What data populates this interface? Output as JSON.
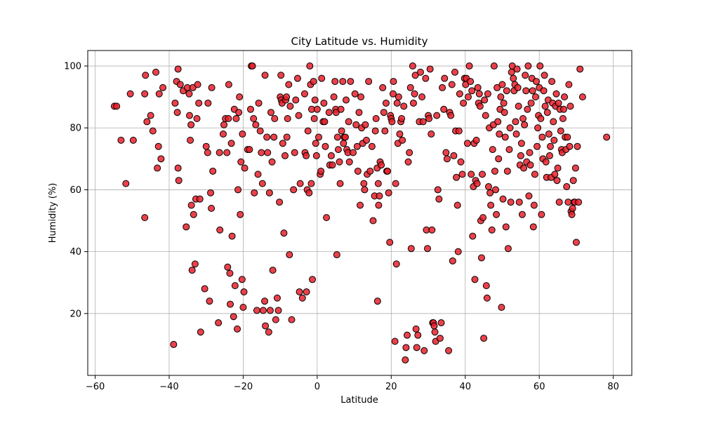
{
  "chart_data": {
    "type": "scatter",
    "title": "City Latitude vs. Humidity",
    "xlabel": "Latitude",
    "ylabel": "Humidity (%)",
    "xlim": [
      -62,
      85
    ],
    "ylim": [
      0,
      105
    ],
    "xticks": [
      -60,
      -40,
      -20,
      0,
      20,
      40,
      60,
      80
    ],
    "yticks": [
      20,
      40,
      60,
      80,
      100
    ],
    "grid": true,
    "marker_fill": "#e8202a",
    "marker_edge": "#000000",
    "points": [
      [
        -54.8,
        87
      ],
      [
        -54.2,
        87
      ],
      [
        -53,
        76
      ],
      [
        -51.7,
        62
      ],
      [
        -50.5,
        91
      ],
      [
        -49.7,
        76
      ],
      [
        -46.6,
        91
      ],
      [
        -46.6,
        51
      ],
      [
        -46.4,
        97
      ],
      [
        -46,
        82
      ],
      [
        -45,
        84
      ],
      [
        -44.4,
        79
      ],
      [
        -43.6,
        98
      ],
      [
        -43.2,
        67
      ],
      [
        -42.9,
        74
      ],
      [
        -42.7,
        91
      ],
      [
        -42.2,
        70
      ],
      [
        -41.7,
        93
      ],
      [
        -38.8,
        10
      ],
      [
        -38.4,
        88
      ],
      [
        -38,
        95
      ],
      [
        -37.8,
        85
      ],
      [
        -37.6,
        67
      ],
      [
        -37.4,
        63
      ],
      [
        -37.6,
        99
      ],
      [
        -37,
        94
      ],
      [
        -36.2,
        92
      ],
      [
        -35.4,
        48
      ],
      [
        -35.1,
        93
      ],
      [
        -34.6,
        91
      ],
      [
        -34.5,
        84
      ],
      [
        -34.3,
        76
      ],
      [
        -34.1,
        81
      ],
      [
        -34,
        55
      ],
      [
        -33.8,
        34
      ],
      [
        -33.6,
        93
      ],
      [
        -33.4,
        52
      ],
      [
        -33,
        36
      ],
      [
        -32.8,
        57
      ],
      [
        -32.5,
        83
      ],
      [
        -32.3,
        94
      ],
      [
        -32,
        88
      ],
      [
        -31.7,
        57
      ],
      [
        -31.5,
        14
      ],
      [
        -30.4,
        28
      ],
      [
        -30,
        74
      ],
      [
        -29.6,
        72
      ],
      [
        -29.5,
        88
      ],
      [
        -29.1,
        24
      ],
      [
        -28.8,
        59
      ],
      [
        -28.6,
        54
      ],
      [
        -28.5,
        93
      ],
      [
        -28.2,
        66
      ],
      [
        -26.7,
        17
      ],
      [
        -26.4,
        72
      ],
      [
        -26.3,
        47
      ],
      [
        -25.4,
        78
      ],
      [
        -25.2,
        81
      ],
      [
        -24.8,
        83
      ],
      [
        -24.4,
        72
      ],
      [
        -24.2,
        35
      ],
      [
        -24,
        83
      ],
      [
        -23.9,
        94
      ],
      [
        -23.6,
        33
      ],
      [
        -23.5,
        23
      ],
      [
        -23.2,
        75
      ],
      [
        -23,
        45
      ],
      [
        -22.6,
        19
      ],
      [
        -22.4,
        86
      ],
      [
        -22.2,
        29
      ],
      [
        -21.9,
        83
      ],
      [
        -21.6,
        15
      ],
      [
        -21.4,
        60
      ],
      [
        -21.2,
        85
      ],
      [
        -21,
        90
      ],
      [
        -20.8,
        52
      ],
      [
        -20.6,
        69
      ],
      [
        -20.3,
        31
      ],
      [
        -20.2,
        78
      ],
      [
        -20,
        22
      ],
      [
        -19.8,
        27
      ],
      [
        -19.6,
        67
      ],
      [
        -18.8,
        73
      ],
      [
        -18.3,
        73
      ],
      [
        -18,
        86
      ],
      [
        -17.8,
        100
      ],
      [
        -17.5,
        100
      ],
      [
        -17.2,
        83
      ],
      [
        -17,
        59
      ],
      [
        -16.6,
        81
      ],
      [
        -16.3,
        21
      ],
      [
        -16,
        65
      ],
      [
        -15.8,
        88
      ],
      [
        -15.4,
        79
      ],
      [
        -15.1,
        72
      ],
      [
        -14.8,
        62
      ],
      [
        -14.6,
        21
      ],
      [
        -14.2,
        24
      ],
      [
        -14.1,
        97
      ],
      [
        -14,
        16
      ],
      [
        -13.6,
        77
      ],
      [
        -13.4,
        72
      ],
      [
        -13.1,
        14
      ],
      [
        -12.9,
        59
      ],
      [
        -12.7,
        21
      ],
      [
        -12.5,
        85
      ],
      [
        -12.2,
        69
      ],
      [
        -12,
        34
      ],
      [
        -11.7,
        77
      ],
      [
        -11.5,
        83
      ],
      [
        -11.2,
        18
      ],
      [
        -10.8,
        25
      ],
      [
        -10.5,
        21
      ],
      [
        -10.2,
        56
      ],
      [
        -10,
        90
      ],
      [
        -9.8,
        97
      ],
      [
        -9.7,
        89
      ],
      [
        -9.5,
        88
      ],
      [
        -9.3,
        75
      ],
      [
        -9,
        46
      ],
      [
        -8.7,
        71
      ],
      [
        -8.5,
        89
      ],
      [
        -8.3,
        90
      ],
      [
        -8.2,
        77
      ],
      [
        -8,
        83
      ],
      [
        -7.7,
        94
      ],
      [
        -7.5,
        39
      ],
      [
        -7.3,
        87
      ],
      [
        -6.9,
        18
      ],
      [
        -6.4,
        60
      ],
      [
        -6.1,
        72
      ],
      [
        -5.8,
        89
      ],
      [
        -5.3,
        96
      ],
      [
        -5,
        84
      ],
      [
        -4.8,
        27
      ],
      [
        -4.6,
        62
      ],
      [
        -4,
        25
      ],
      [
        -3.4,
        91
      ],
      [
        -3.3,
        72
      ],
      [
        -3,
        71
      ],
      [
        -2.9,
        27
      ],
      [
        -2.7,
        60
      ],
      [
        -2.5,
        79
      ],
      [
        -2.2,
        59
      ],
      [
        -2,
        100
      ],
      [
        -1.8,
        94
      ],
      [
        -1.6,
        62
      ],
      [
        -1.5,
        86
      ],
      [
        -1.3,
        31
      ],
      [
        -1,
        95
      ],
      [
        -0.8,
        83
      ],
      [
        -0.6,
        89
      ],
      [
        -0.4,
        75
      ],
      [
        -0.2,
        71
      ],
      [
        0,
        86
      ],
      [
        0.4,
        77
      ],
      [
        0.8,
        65
      ],
      [
        1,
        66
      ],
      [
        1.2,
        96
      ],
      [
        1.6,
        82
      ],
      [
        1.8,
        88
      ],
      [
        2,
        82
      ],
      [
        2.2,
        74
      ],
      [
        2.5,
        51
      ],
      [
        3.2,
        85
      ],
      [
        3.4,
        68
      ],
      [
        3.8,
        71
      ],
      [
        4.1,
        68
      ],
      [
        4.5,
        90
      ],
      [
        4.8,
        95
      ],
      [
        5,
        86
      ],
      [
        5.1,
        85
      ],
      [
        5.3,
        39
      ],
      [
        5.5,
        77
      ],
      [
        5.7,
        73
      ],
      [
        6,
        69
      ],
      [
        6.2,
        62
      ],
      [
        6.4,
        86
      ],
      [
        6.6,
        79
      ],
      [
        6.9,
        95
      ],
      [
        7.1,
        75
      ],
      [
        7.3,
        77
      ],
      [
        7.6,
        77
      ],
      [
        7.8,
        89
      ],
      [
        8,
        73
      ],
      [
        8.3,
        72
      ],
      [
        8.5,
        82
      ],
      [
        8.7,
        69
      ],
      [
        9,
        95
      ],
      [
        9.7,
        72
      ],
      [
        10.2,
        91
      ],
      [
        10.5,
        81
      ],
      [
        10.8,
        74
      ],
      [
        11,
        66
      ],
      [
        11.3,
        85
      ],
      [
        11.6,
        55
      ],
      [
        11.8,
        90
      ],
      [
        12,
        80
      ],
      [
        12.3,
        75
      ],
      [
        12.6,
        62
      ],
      [
        12.8,
        60
      ],
      [
        13,
        81
      ],
      [
        13.3,
        76
      ],
      [
        13.5,
        65
      ],
      [
        13.9,
        95
      ],
      [
        14.3,
        66
      ],
      [
        14.8,
        74
      ],
      [
        15.1,
        50
      ],
      [
        15.5,
        58
      ],
      [
        15.7,
        79
      ],
      [
        15.9,
        83
      ],
      [
        16.2,
        67
      ],
      [
        16.3,
        24
      ],
      [
        16.5,
        62
      ],
      [
        16.6,
        55
      ],
      [
        16.8,
        58
      ],
      [
        17,
        69
      ],
      [
        17.3,
        68
      ],
      [
        17.7,
        93
      ],
      [
        18,
        85
      ],
      [
        18.3,
        79
      ],
      [
        18.6,
        88
      ],
      [
        18.8,
        66
      ],
      [
        19,
        66
      ],
      [
        19.3,
        59
      ],
      [
        19.6,
        43
      ],
      [
        19.8,
        84
      ],
      [
        20,
        83
      ],
      [
        20.2,
        82
      ],
      [
        20.5,
        91
      ],
      [
        20.6,
        95
      ],
      [
        21,
        11
      ],
      [
        21.2,
        62
      ],
      [
        21.4,
        36
      ],
      [
        21.6,
        88
      ],
      [
        21.8,
        75
      ],
      [
        22,
        90
      ],
      [
        22.3,
        78
      ],
      [
        22.6,
        82
      ],
      [
        22.8,
        83
      ],
      [
        23,
        76
      ],
      [
        23.4,
        87
      ],
      [
        23.8,
        5
      ],
      [
        24,
        9
      ],
      [
        24.3,
        13
      ],
      [
        24.6,
        69
      ],
      [
        24.9,
        72
      ],
      [
        25.2,
        93
      ],
      [
        25.4,
        41
      ],
      [
        25.8,
        100
      ],
      [
        26,
        88
      ],
      [
        26.3,
        91
      ],
      [
        26.5,
        97
      ],
      [
        26.7,
        15
      ],
      [
        26.9,
        9
      ],
      [
        27.2,
        13
      ],
      [
        27.6,
        82
      ],
      [
        27.9,
        98
      ],
      [
        28.3,
        90
      ],
      [
        28.6,
        82
      ],
      [
        28.9,
        8
      ],
      [
        29.3,
        96
      ],
      [
        29.5,
        47
      ],
      [
        29.8,
        41
      ],
      [
        30,
        84
      ],
      [
        30.2,
        83
      ],
      [
        30.5,
        99
      ],
      [
        30.8,
        78
      ],
      [
        31,
        47
      ],
      [
        31.2,
        17
      ],
      [
        31.4,
        17
      ],
      [
        31.6,
        16
      ],
      [
        31.8,
        14
      ],
      [
        32,
        11
      ],
      [
        32.3,
        84
      ],
      [
        32.6,
        60
      ],
      [
        32.9,
        57
      ],
      [
        33.2,
        12
      ],
      [
        33.5,
        17
      ],
      [
        33.8,
        93
      ],
      [
        34.2,
        86
      ],
      [
        34.4,
        96
      ],
      [
        34.8,
        72
      ],
      [
        35.1,
        70
      ],
      [
        35.5,
        8
      ],
      [
        35.8,
        85
      ],
      [
        36.1,
        84
      ],
      [
        36.4,
        94
      ],
      [
        36.6,
        37
      ],
      [
        36.9,
        71
      ],
      [
        37.2,
        98
      ],
      [
        37.4,
        79
      ],
      [
        37.6,
        64
      ],
      [
        37.9,
        55
      ],
      [
        38.1,
        40
      ],
      [
        38.3,
        79
      ],
      [
        38.5,
        91
      ],
      [
        38.8,
        69
      ],
      [
        39.2,
        65
      ],
      [
        39.5,
        88
      ],
      [
        39.8,
        96
      ],
      [
        40.1,
        94
      ],
      [
        40.3,
        96
      ],
      [
        40.6,
        75
      ],
      [
        40.8,
        90
      ],
      [
        41.1,
        100
      ],
      [
        41.4,
        95
      ],
      [
        41.6,
        65
      ],
      [
        41.8,
        92
      ],
      [
        42,
        45
      ],
      [
        42.2,
        61
      ],
      [
        42.4,
        75
      ],
      [
        42.6,
        31
      ],
      [
        42.8,
        63
      ],
      [
        43,
        76
      ],
      [
        43.2,
        62
      ],
      [
        43.4,
        93
      ],
      [
        43.6,
        88
      ],
      [
        43.8,
        91
      ],
      [
        44,
        87
      ],
      [
        44.2,
        50
      ],
      [
        44.4,
        38
      ],
      [
        44.6,
        65
      ],
      [
        44.8,
        51
      ],
      [
        45,
        12
      ],
      [
        45.2,
        89
      ],
      [
        45.5,
        84
      ],
      [
        45.7,
        29
      ],
      [
        45.9,
        25
      ],
      [
        46.1,
        91
      ],
      [
        46.3,
        61
      ],
      [
        46.5,
        80
      ],
      [
        46.7,
        59
      ],
      [
        46.9,
        55
      ],
      [
        47.2,
        47
      ],
      [
        47.4,
        73
      ],
      [
        47.6,
        81
      ],
      [
        47.8,
        100
      ],
      [
        48,
        66
      ],
      [
        48.2,
        60
      ],
      [
        48.4,
        52
      ],
      [
        48.6,
        93
      ],
      [
        48.8,
        82
      ],
      [
        49,
        70
      ],
      [
        49.2,
        78
      ],
      [
        49.4,
        86
      ],
      [
        49.6,
        90
      ],
      [
        49.8,
        22
      ],
      [
        50,
        94
      ],
      [
        50.2,
        57
      ],
      [
        50.4,
        88
      ],
      [
        50.6,
        85
      ],
      [
        50.8,
        77
      ],
      [
        51,
        48
      ],
      [
        51.2,
        92
      ],
      [
        51.4,
        66
      ],
      [
        51.6,
        41
      ],
      [
        51.9,
        73
      ],
      [
        52.1,
        80
      ],
      [
        52.3,
        56
      ],
      [
        52.5,
        98
      ],
      [
        52.7,
        100
      ],
      [
        53,
        96
      ],
      [
        53.2,
        92
      ],
      [
        53.4,
        94
      ],
      [
        53.6,
        82
      ],
      [
        53.8,
        78
      ],
      [
        54,
        99
      ],
      [
        54.2,
        93
      ],
      [
        54.4,
        87
      ],
      [
        54.6,
        56
      ],
      [
        54.8,
        68
      ],
      [
        55,
        71
      ],
      [
        55.2,
        75
      ],
      [
        55.4,
        52
      ],
      [
        55.6,
        83
      ],
      [
        55.8,
        67
      ],
      [
        56,
        81
      ],
      [
        56.2,
        97
      ],
      [
        56.4,
        92
      ],
      [
        56.6,
        69
      ],
      [
        56.8,
        86
      ],
      [
        57,
        100
      ],
      [
        57.2,
        58
      ],
      [
        57.4,
        72
      ],
      [
        57.6,
        68
      ],
      [
        57.8,
        88
      ],
      [
        58,
        96
      ],
      [
        58.2,
        92
      ],
      [
        58.4,
        48
      ],
      [
        58.6,
        55
      ],
      [
        58.8,
        65
      ],
      [
        59,
        90
      ],
      [
        59.2,
        95
      ],
      [
        59.4,
        74
      ],
      [
        59.6,
        80
      ],
      [
        59.8,
        84
      ],
      [
        60,
        93
      ],
      [
        60.2,
        100
      ],
      [
        60.4,
        83
      ],
      [
        60.6,
        52
      ],
      [
        60.8,
        77
      ],
      [
        61,
        70
      ],
      [
        61.2,
        92
      ],
      [
        61.4,
        97
      ],
      [
        61.6,
        87
      ],
      [
        61.8,
        69
      ],
      [
        62,
        64
      ],
      [
        62.2,
        85
      ],
      [
        62.4,
        89
      ],
      [
        62.6,
        78
      ],
      [
        62.8,
        71
      ],
      [
        63,
        74
      ],
      [
        63.2,
        64
      ],
      [
        63.4,
        95
      ],
      [
        63.6,
        88
      ],
      [
        63.8,
        82
      ],
      [
        64,
        76
      ],
      [
        64.2,
        65
      ],
      [
        64.4,
        87
      ],
      [
        64.6,
        91
      ],
      [
        64.8,
        63
      ],
      [
        65,
        67
      ],
      [
        65.2,
        88
      ],
      [
        65.4,
        56
      ],
      [
        65.6,
        86
      ],
      [
        65.8,
        79
      ],
      [
        66,
        73
      ],
      [
        66.2,
        72
      ],
      [
        66.4,
        83
      ],
      [
        66.6,
        86
      ],
      [
        66.8,
        90
      ],
      [
        67,
        77
      ],
      [
        67.2,
        73
      ],
      [
        67.4,
        61
      ],
      [
        67.6,
        77
      ],
      [
        67.8,
        56
      ],
      [
        68,
        94
      ],
      [
        68.2,
        74
      ],
      [
        68.4,
        87
      ],
      [
        68.6,
        53
      ],
      [
        68.8,
        52
      ],
      [
        69,
        54
      ],
      [
        69.2,
        63
      ],
      [
        69.4,
        56
      ],
      [
        69.6,
        56
      ],
      [
        69.8,
        67
      ],
      [
        70,
        43
      ],
      [
        70.3,
        74
      ],
      [
        70.6,
        56
      ],
      [
        71,
        99
      ],
      [
        71.7,
        90
      ],
      [
        78.2,
        77
      ]
    ]
  }
}
